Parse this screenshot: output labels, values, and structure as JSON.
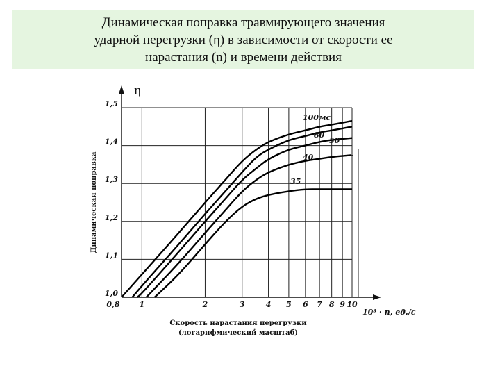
{
  "title_lines": [
    "Динамическая поправка травмирующего значения",
    "ударной перегрузки (η) в зависимости от скорости ее",
    "нарастания (n) и времени действия"
  ],
  "chart_data": {
    "type": "line",
    "x_scale": "log",
    "xlim": [
      0.8,
      10
    ],
    "ylim": [
      1.0,
      1.5
    ],
    "y_axis_symbol": "η",
    "ylabel": "Динамическая поправка",
    "xlabel_lines": [
      "Скорость нарастания перегрузки",
      "(логарифмический масштаб)"
    ],
    "x_unit_label": "10³ · n, ед./с",
    "x_ticks": [
      {
        "value": 0.8,
        "label": "0,8"
      },
      {
        "value": 1,
        "label": "1"
      },
      {
        "value": 2,
        "label": "2"
      },
      {
        "value": 3,
        "label": "3"
      },
      {
        "value": 4,
        "label": "4"
      },
      {
        "value": 5,
        "label": "5"
      },
      {
        "value": 6,
        "label": "6"
      },
      {
        "value": 7,
        "label": "7"
      },
      {
        "value": 8,
        "label": "8"
      },
      {
        "value": 9,
        "label": "9"
      },
      {
        "value": 10,
        "label": "10"
      }
    ],
    "y_ticks": [
      {
        "value": 1.0,
        "label": "1,0"
      },
      {
        "value": 1.1,
        "label": "1,1"
      },
      {
        "value": 1.2,
        "label": "1,2"
      },
      {
        "value": 1.3,
        "label": "1,3"
      },
      {
        "value": 1.4,
        "label": "1,4"
      },
      {
        "value": 1.5,
        "label": "1,5"
      }
    ],
    "series": [
      {
        "name": "100мс",
        "x": [
          0.8,
          1.0,
          1.5,
          2.0,
          2.5,
          3.0,
          3.5,
          4.0,
          5.0,
          6.0,
          7.0,
          8.0,
          10.0
        ],
        "y": [
          1.0,
          1.06,
          1.17,
          1.25,
          1.31,
          1.36,
          1.39,
          1.41,
          1.43,
          1.44,
          1.45,
          1.455,
          1.465
        ]
      },
      {
        "name": "80",
        "x": [
          0.9,
          1.0,
          1.5,
          2.0,
          2.5,
          3.0,
          3.5,
          4.0,
          5.0,
          6.0,
          7.0,
          8.0,
          10.0
        ],
        "y": [
          1.0,
          1.03,
          1.14,
          1.22,
          1.28,
          1.33,
          1.37,
          1.39,
          1.415,
          1.425,
          1.435,
          1.44,
          1.45
        ]
      },
      {
        "name": "50",
        "x": [
          0.95,
          1.0,
          1.5,
          2.0,
          2.5,
          3.0,
          3.5,
          4.0,
          5.0,
          6.0,
          7.0,
          8.0,
          10.0
        ],
        "y": [
          1.0,
          1.01,
          1.12,
          1.2,
          1.26,
          1.31,
          1.34,
          1.365,
          1.39,
          1.4,
          1.41,
          1.415,
          1.42
        ]
      },
      {
        "name": "40",
        "x": [
          1.05,
          1.5,
          2.0,
          2.5,
          3.0,
          3.5,
          4.0,
          5.0,
          6.0,
          7.0,
          8.0,
          10.0
        ],
        "y": [
          1.0,
          1.09,
          1.17,
          1.23,
          1.28,
          1.31,
          1.33,
          1.35,
          1.36,
          1.365,
          1.37,
          1.375
        ]
      },
      {
        "name": "35",
        "x": [
          1.15,
          1.5,
          2.0,
          2.5,
          3.0,
          3.5,
          4.0,
          5.0,
          6.0,
          7.0,
          8.0,
          10.0
        ],
        "y": [
          1.0,
          1.06,
          1.14,
          1.2,
          1.24,
          1.26,
          1.27,
          1.28,
          1.285,
          1.285,
          1.285,
          1.285
        ]
      }
    ],
    "grid": true
  }
}
